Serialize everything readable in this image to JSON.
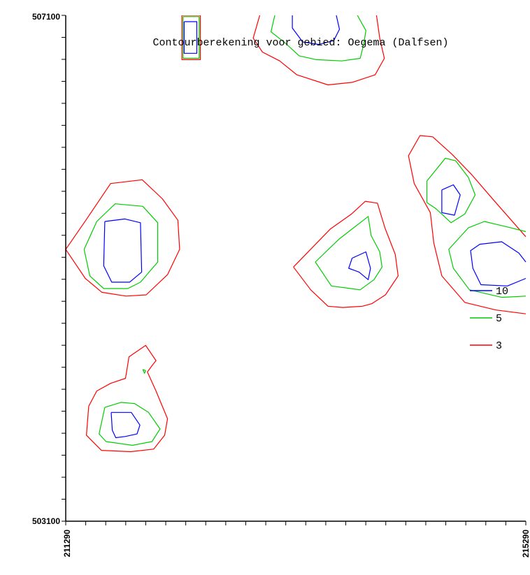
{
  "chart_data": {
    "type": "contour",
    "title": "Contourberekening voor gebied: Oegema (Dalfsen)",
    "xlim": [
      211290,
      215290
    ],
    "ylim": [
      503100,
      507100
    ],
    "x_tick_labels": [
      "211290",
      "215290"
    ],
    "y_tick_labels": [
      "507100",
      "503100"
    ],
    "x_minor_tick_count": 23,
    "y_minor_tick_count": 23,
    "grid": false,
    "legend_position": "right",
    "levels": [
      {
        "name": "10",
        "value": 10,
        "color": "#0000ff"
      },
      {
        "name": "5",
        "value": 5,
        "color": "#00cc00"
      },
      {
        "name": "3",
        "value": 3,
        "color": "#ff0000"
      }
    ],
    "contours": [
      {
        "level": 3,
        "color": "#ff0000",
        "points": [
          [
            211290,
            505250
          ],
          [
            211465,
            505480
          ],
          [
            211680,
            505770
          ],
          [
            211955,
            505800
          ],
          [
            212130,
            505650
          ],
          [
            212265,
            505480
          ],
          [
            212280,
            505250
          ],
          [
            212175,
            505050
          ],
          [
            211990,
            504890
          ],
          [
            211815,
            504880
          ],
          [
            211605,
            504910
          ],
          [
            211460,
            505020
          ],
          [
            211290,
            505250
          ]
        ]
      },
      {
        "level": 5,
        "color": "#00cc00",
        "points": [
          [
            211450,
            505250
          ],
          [
            211560,
            505470
          ],
          [
            211720,
            505610
          ],
          [
            211960,
            505590
          ],
          [
            212090,
            505460
          ],
          [
            212090,
            505150
          ],
          [
            211940,
            504990
          ],
          [
            211830,
            504940
          ],
          [
            211620,
            504940
          ],
          [
            211500,
            505040
          ],
          [
            211450,
            505250
          ]
        ]
      },
      {
        "level": 10,
        "color": "#0000ff",
        "points": [
          [
            211630,
            505470
          ],
          [
            211805,
            505490
          ],
          [
            211940,
            505460
          ],
          [
            211950,
            505070
          ],
          [
            211845,
            504990
          ],
          [
            211690,
            504990
          ],
          [
            211620,
            505120
          ],
          [
            211630,
            505470
          ]
        ]
      },
      {
        "level": 3,
        "color": "#ff0000",
        "points": [
          [
            211490,
            504010
          ],
          [
            211560,
            504130
          ],
          [
            211680,
            504190
          ],
          [
            211810,
            504230
          ],
          [
            211840,
            504400
          ],
          [
            211985,
            504490
          ],
          [
            212075,
            504370
          ],
          [
            212040,
            504330
          ],
          [
            212000,
            504280
          ],
          [
            212075,
            504130
          ],
          [
            212175,
            503910
          ],
          [
            212150,
            503780
          ],
          [
            212055,
            503670
          ],
          [
            211855,
            503650
          ],
          [
            211600,
            503660
          ],
          [
            211470,
            503780
          ],
          [
            211490,
            504010
          ]
        ]
      },
      {
        "level": 5,
        "color": "#00cc00",
        "points": [
          [
            211630,
            504000
          ],
          [
            211770,
            504040
          ],
          [
            211890,
            504030
          ],
          [
            212010,
            503960
          ],
          [
            212110,
            503830
          ],
          [
            212040,
            503730
          ],
          [
            211870,
            503700
          ],
          [
            211640,
            503730
          ],
          [
            211580,
            503790
          ],
          [
            211630,
            504000
          ]
        ]
      },
      {
        "level": 10,
        "color": "#0000ff",
        "points": [
          [
            211685,
            503960
          ],
          [
            211860,
            503960
          ],
          [
            211935,
            503860
          ],
          [
            211910,
            503790
          ],
          [
            211810,
            503770
          ],
          [
            211725,
            503760
          ],
          [
            211695,
            503820
          ],
          [
            211685,
            503960
          ]
        ]
      },
      {
        "level": 5,
        "color": "#00cc00",
        "points": [
          [
            211960,
            504300
          ],
          [
            211985,
            504290
          ],
          [
            211975,
            504270
          ],
          [
            211960,
            504300
          ]
        ]
      },
      {
        "level": 3,
        "color": "#ff0000",
        "points": [
          [
            213270,
            505110
          ],
          [
            213590,
            505410
          ],
          [
            213775,
            505530
          ],
          [
            213895,
            505630
          ],
          [
            214000,
            505615
          ],
          [
            214065,
            505420
          ],
          [
            214155,
            505210
          ],
          [
            214180,
            505040
          ],
          [
            214070,
            504890
          ],
          [
            213950,
            504820
          ],
          [
            213870,
            504800
          ],
          [
            213700,
            504790
          ],
          [
            213570,
            504800
          ],
          [
            213420,
            504930
          ],
          [
            213270,
            505110
          ]
        ]
      },
      {
        "level": 5,
        "color": "#00cc00",
        "points": [
          [
            213460,
            505150
          ],
          [
            213665,
            505330
          ],
          [
            213850,
            505460
          ],
          [
            213920,
            505510
          ],
          [
            213945,
            505360
          ],
          [
            214020,
            505230
          ],
          [
            214040,
            505110
          ],
          [
            213970,
            505010
          ],
          [
            213850,
            504930
          ],
          [
            213600,
            504960
          ],
          [
            213460,
            505150
          ]
        ]
      },
      {
        "level": 10,
        "color": "#0000ff",
        "points": [
          [
            213780,
            505180
          ],
          [
            213900,
            505230
          ],
          [
            213940,
            505100
          ],
          [
            213920,
            505010
          ],
          [
            213840,
            505070
          ],
          [
            213750,
            505100
          ],
          [
            213780,
            505180
          ]
        ]
      },
      {
        "level": 3,
        "color": "#ff0000",
        "points": [
          [
            212300,
            507100
          ],
          [
            212460,
            507100
          ],
          [
            212460,
            506750
          ],
          [
            212300,
            506750
          ],
          [
            212300,
            507100
          ]
        ]
      },
      {
        "level": 5,
        "color": "#00cc00",
        "points": [
          [
            212310,
            507090
          ],
          [
            212450,
            507090
          ],
          [
            212450,
            506760
          ],
          [
            212310,
            506760
          ],
          [
            212310,
            507090
          ]
        ]
      },
      {
        "level": 10,
        "color": "#0000ff",
        "points": [
          [
            212320,
            507050
          ],
          [
            212430,
            507050
          ],
          [
            212430,
            506800
          ],
          [
            212320,
            506800
          ],
          [
            212320,
            507050
          ]
        ]
      },
      {
        "level": 3,
        "color": "#ff0000",
        "points": [
          [
            212980,
            507110
          ],
          [
            212920,
            506920
          ],
          [
            213000,
            506810
          ],
          [
            213150,
            506740
          ],
          [
            213300,
            506630
          ],
          [
            213570,
            506550
          ],
          [
            213780,
            506570
          ],
          [
            213980,
            506630
          ],
          [
            214060,
            506760
          ],
          [
            214020,
            506920
          ],
          [
            213990,
            507110
          ]
        ]
      },
      {
        "level": 5,
        "color": "#00cc00",
        "points": [
          [
            213110,
            507110
          ],
          [
            213075,
            506970
          ],
          [
            213200,
            506880
          ],
          [
            213320,
            506780
          ],
          [
            213470,
            506750
          ],
          [
            213690,
            506740
          ],
          [
            213850,
            506760
          ],
          [
            213880,
            506870
          ],
          [
            213900,
            506980
          ],
          [
            213820,
            507110
          ]
        ]
      },
      {
        "level": 10,
        "color": "#0000ff",
        "points": [
          [
            213260,
            507110
          ],
          [
            213260,
            507000
          ],
          [
            213350,
            506890
          ],
          [
            213490,
            506870
          ],
          [
            213620,
            506900
          ],
          [
            213670,
            506990
          ],
          [
            213640,
            507110
          ]
        ]
      },
      {
        "level": 3,
        "color": "#ff0000",
        "points": [
          [
            215290,
            504740
          ],
          [
            215030,
            504770
          ],
          [
            214760,
            504830
          ],
          [
            214560,
            505040
          ],
          [
            214490,
            505300
          ],
          [
            214460,
            505540
          ],
          [
            214320,
            505770
          ],
          [
            214270,
            505990
          ],
          [
            214370,
            506150
          ],
          [
            214480,
            506140
          ],
          [
            214650,
            506000
          ],
          [
            214820,
            505840
          ],
          [
            215010,
            505640
          ],
          [
            215290,
            505350
          ]
        ]
      },
      {
        "level": 5,
        "color": "#00cc00",
        "points": [
          [
            214430,
            505790
          ],
          [
            214590,
            505970
          ],
          [
            214680,
            505950
          ],
          [
            214790,
            505820
          ],
          [
            214850,
            505680
          ],
          [
            214760,
            505530
          ],
          [
            214640,
            505460
          ],
          [
            214510,
            505570
          ],
          [
            214430,
            505620
          ],
          [
            214430,
            505790
          ]
        ]
      },
      {
        "level": 10,
        "color": "#0000ff",
        "points": [
          [
            214560,
            505720
          ],
          [
            214660,
            505760
          ],
          [
            214720,
            505680
          ],
          [
            214670,
            505520
          ],
          [
            214560,
            505540
          ],
          [
            214560,
            505720
          ]
        ]
      },
      {
        "level": 5,
        "color": "#00cc00",
        "points": [
          [
            215290,
            504880
          ],
          [
            215080,
            504870
          ],
          [
            214800,
            504930
          ],
          [
            214660,
            505100
          ],
          [
            214620,
            505250
          ],
          [
            214790,
            505420
          ],
          [
            214930,
            505470
          ],
          [
            215020,
            505450
          ],
          [
            215160,
            505420
          ],
          [
            215290,
            505390
          ]
        ]
      },
      {
        "level": 10,
        "color": "#0000ff",
        "points": [
          [
            215290,
            505020
          ],
          [
            215130,
            504960
          ],
          [
            214900,
            504970
          ],
          [
            214830,
            505100
          ],
          [
            214810,
            505240
          ],
          [
            214890,
            505290
          ],
          [
            215080,
            505310
          ],
          [
            215230,
            505220
          ],
          [
            215290,
            505150
          ]
        ]
      }
    ]
  }
}
